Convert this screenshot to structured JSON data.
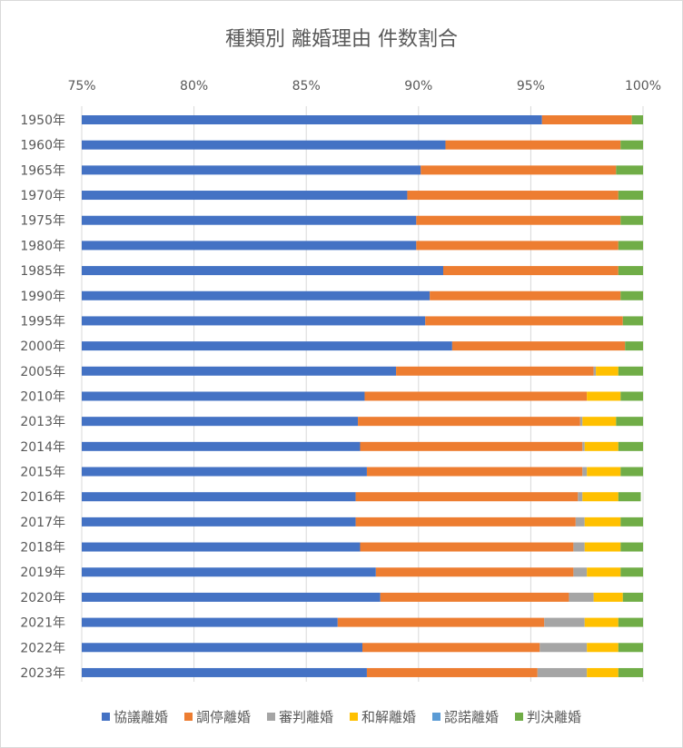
{
  "chart_data": {
    "type": "bar",
    "orientation": "horizontal",
    "stacked": "100%",
    "title": "種類別 離婚理由 件数割合",
    "xlabel": "",
    "ylabel": "",
    "xlim": [
      0.75,
      1.0
    ],
    "x_tick_values": [
      0.75,
      0.8,
      0.85,
      0.9,
      0.95,
      1.0
    ],
    "x_tick_labels": [
      "75%",
      "80%",
      "85%",
      "90%",
      "95%",
      "100%"
    ],
    "x_axis_position": "top",
    "grid": true,
    "legend_position": "bottom",
    "categories": [
      "1950年",
      "1960年",
      "1965年",
      "1970年",
      "1975年",
      "1980年",
      "1985年",
      "1990年",
      "1995年",
      "2000年",
      "2005年",
      "2010年",
      "2013年",
      "2014年",
      "2015年",
      "2016年",
      "2017年",
      "2018年",
      "2019年",
      "2020年",
      "2021年",
      "2022年",
      "2023年"
    ],
    "series": [
      {
        "name": "協議離婚",
        "color": "#4472c4",
        "values": [
          0.955,
          0.912,
          0.901,
          0.895,
          0.899,
          0.899,
          0.911,
          0.905,
          0.903,
          0.915,
          0.89,
          0.876,
          0.873,
          0.874,
          0.877,
          0.872,
          0.872,
          0.874,
          0.881,
          0.883,
          0.864,
          0.875,
          0.877
        ]
      },
      {
        "name": "調停離婚",
        "color": "#ed7d31",
        "values": [
          0.04,
          0.078,
          0.087,
          0.094,
          0.091,
          0.09,
          0.078,
          0.085,
          0.088,
          0.077,
          0.088,
          0.099,
          0.099,
          0.099,
          0.096,
          0.099,
          0.098,
          0.095,
          0.088,
          0.084,
          0.092,
          0.079,
          0.076
        ]
      },
      {
        "name": "審判離婚",
        "color": "#a5a5a5",
        "values": [
          0.0,
          0.0,
          0.0,
          0.0,
          0.0,
          0.0,
          0.0,
          0.0,
          0.0,
          0.0,
          0.001,
          0.0,
          0.001,
          0.001,
          0.002,
          0.002,
          0.004,
          0.005,
          0.006,
          0.011,
          0.018,
          0.021,
          0.022
        ]
      },
      {
        "name": "和解離婚",
        "color": "#ffc000",
        "values": [
          0.0,
          0.0,
          0.0,
          0.0,
          0.0,
          0.0,
          0.0,
          0.0,
          0.0,
          0.0,
          0.01,
          0.015,
          0.015,
          0.015,
          0.015,
          0.016,
          0.016,
          0.016,
          0.015,
          0.013,
          0.015,
          0.014,
          0.014
        ]
      },
      {
        "name": "認諾離婚",
        "color": "#5b9bd5",
        "values": [
          0.0,
          0.0,
          0.0,
          0.0,
          0.0,
          0.0,
          0.0,
          0.0,
          0.0,
          0.0,
          0.0,
          0.0,
          0.0,
          0.0,
          0.0,
          0.0,
          0.0,
          0.0,
          0.0,
          0.0,
          0.0,
          0.0,
          0.0
        ]
      },
      {
        "name": "判決離婚",
        "color": "#70ad47",
        "values": [
          0.005,
          0.01,
          0.012,
          0.011,
          0.01,
          0.011,
          0.011,
          0.01,
          0.009,
          0.008,
          0.012,
          0.01,
          0.012,
          0.011,
          0.01,
          0.01,
          0.01,
          0.01,
          0.01,
          0.009,
          0.011,
          0.011,
          0.011
        ]
      }
    ]
  },
  "colors": {
    "gridline": "#d9d9d9",
    "axis_text": "#595959"
  }
}
